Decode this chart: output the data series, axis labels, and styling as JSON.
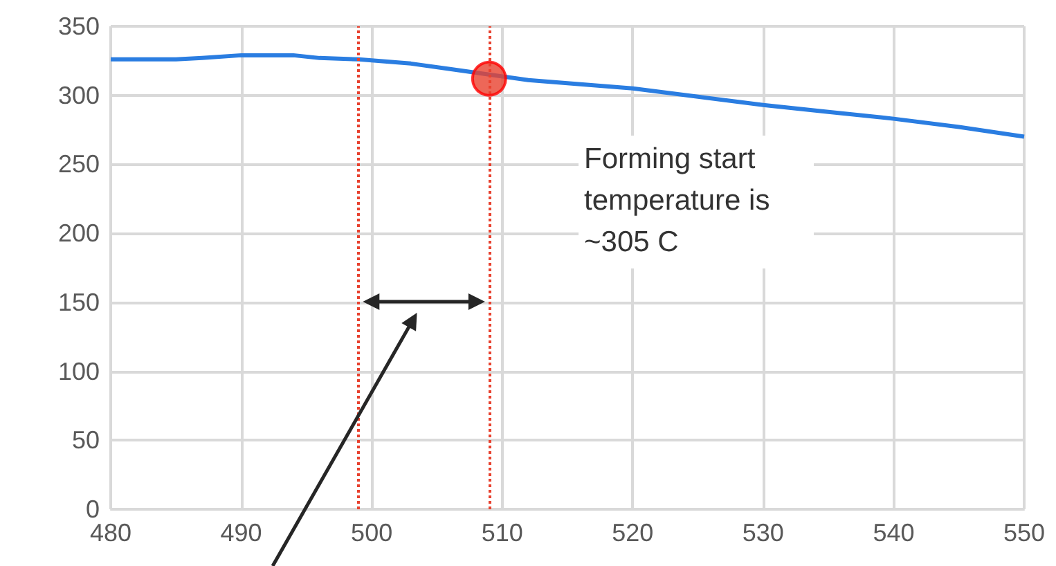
{
  "chart_data": {
    "type": "line",
    "x": [
      480,
      485,
      487,
      490,
      494,
      496,
      499,
      503,
      506,
      512,
      516,
      520,
      525,
      530,
      535,
      540,
      545,
      550
    ],
    "series": [
      {
        "color": "#2a7de1",
        "values": [
          326,
          326,
          327,
          329,
          329,
          327,
          326,
          323,
          319,
          311,
          308,
          305,
          299,
          293,
          288,
          283,
          277,
          270
        ]
      },
      {
        "type": "scatter",
        "marker": "circle",
        "color": "#e8412e",
        "x": [
          509
        ],
        "values": [
          312
        ]
      }
    ],
    "xlim": [
      480,
      550
    ],
    "xticks": [
      480,
      490,
      500,
      510,
      520,
      530,
      540,
      550
    ],
    "ylim": [
      0,
      350
    ],
    "yticks": [
      0,
      50,
      100,
      150,
      200,
      250,
      300,
      350
    ],
    "grid": true,
    "marker": "none",
    "ref_lines": [
      {
        "axis": "x",
        "value": 499,
        "color": "#e8412e",
        "line_style": "dotted"
      },
      {
        "axis": "x",
        "value": 509,
        "color": "#e8412e",
        "line_style": "dotted"
      }
    ],
    "annotations": [
      "Forming start\ntemperature is\n~305 C"
    ]
  }
}
